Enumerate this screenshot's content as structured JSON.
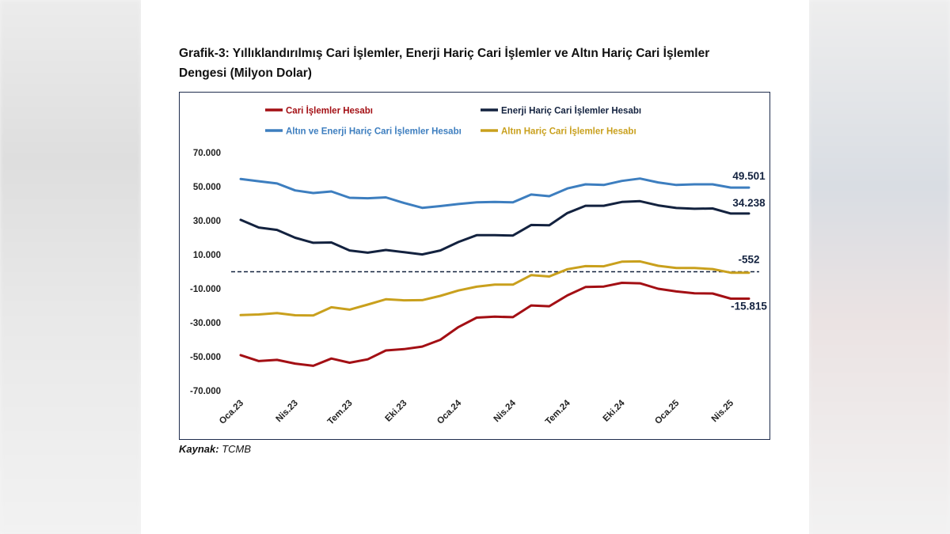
{
  "page": {
    "title_line1": "Grafik-3: Yıllıklandırılmış Cari İşlemler, Enerji Hariç Cari İşlemler ve Altın Hariç Cari İşlemler",
    "title_line2": "Dengesi (Milyon Dolar)",
    "source_label": "Kaynak:",
    "source_value": "TCMB"
  },
  "chart_data": {
    "type": "line",
    "title": "Grafik-3: Yıllıklandırılmış Cari İşlemler, Enerji Hariç Cari İşlemler ve Altın Hariç Cari İşlemler Dengesi (Milyon Dolar)",
    "ylim": [
      -70000,
      70000
    ],
    "yticks": [
      70000,
      50000,
      30000,
      10000,
      -10000,
      -30000,
      -50000,
      -70000
    ],
    "ytick_labels": [
      "70.000",
      "50.000",
      "30.000",
      "10.000",
      "-10.000",
      "-30.000",
      "-50.000",
      "-70.000"
    ],
    "x_count": 29,
    "xtick_labels": [
      {
        "i": 0,
        "label": "Oca.23"
      },
      {
        "i": 3,
        "label": "Nis.23"
      },
      {
        "i": 6,
        "label": "Tem.23"
      },
      {
        "i": 9,
        "label": "Eki.23"
      },
      {
        "i": 12,
        "label": "Oca.24"
      },
      {
        "i": 15,
        "label": "Nis.24"
      },
      {
        "i": 18,
        "label": "Tem.24"
      },
      {
        "i": 21,
        "label": "Eki.24"
      },
      {
        "i": 24,
        "label": "Oca.25"
      },
      {
        "i": 27,
        "label": "Nis.25"
      }
    ],
    "reference_line": 0,
    "series": [
      {
        "name": "Cari İşlemler Hesabı",
        "color": "#a30f14",
        "values": [
          -49000,
          -52500,
          -51800,
          -54000,
          -55300,
          -51000,
          -53500,
          -51500,
          -46300,
          -45500,
          -44000,
          -40000,
          -32500,
          -27000,
          -26400,
          -26700,
          -19800,
          -20300,
          -13900,
          -9000,
          -8700,
          -6500,
          -6800,
          -10000,
          -11600,
          -12700,
          -12800,
          -15815,
          -15815
        ],
        "end_label": "-15.815"
      },
      {
        "name": "Enerji Hariç Cari İşlemler Hesabı",
        "color": "#13223f",
        "values": [
          30500,
          26000,
          24600,
          20000,
          17000,
          17200,
          12500,
          11200,
          12800,
          11500,
          10200,
          12500,
          17500,
          21500,
          21500,
          21300,
          27500,
          27300,
          34500,
          38800,
          38800,
          41000,
          41500,
          39000,
          37500,
          37000,
          37200,
          34238,
          34238
        ],
        "end_label": "34.238"
      },
      {
        "name": "Altın ve Enerji Hariç Cari İşlemler Hesabı",
        "color": "#3d7ebf",
        "values": [
          54500,
          53200,
          51900,
          47800,
          46300,
          47200,
          43500,
          43200,
          43700,
          40400,
          37600,
          38600,
          39800,
          40800,
          41000,
          40800,
          45400,
          44400,
          49000,
          51400,
          51000,
          53400,
          54800,
          52500,
          51000,
          51400,
          51400,
          49501,
          49501
        ],
        "end_label": "49.501"
      },
      {
        "name": "Altın Hariç Cari İşlemler Hesabı",
        "color": "#c9a01d",
        "values": [
          -25500,
          -25100,
          -24300,
          -25600,
          -25700,
          -20900,
          -22300,
          -19300,
          -16200,
          -16800,
          -16700,
          -14200,
          -11000,
          -8800,
          -7600,
          -7600,
          -2000,
          -2800,
          1500,
          3300,
          3200,
          5900,
          6100,
          3500,
          2200,
          2200,
          1600,
          -552,
          -552
        ],
        "end_label": "-552"
      }
    ],
    "legend": "top"
  }
}
